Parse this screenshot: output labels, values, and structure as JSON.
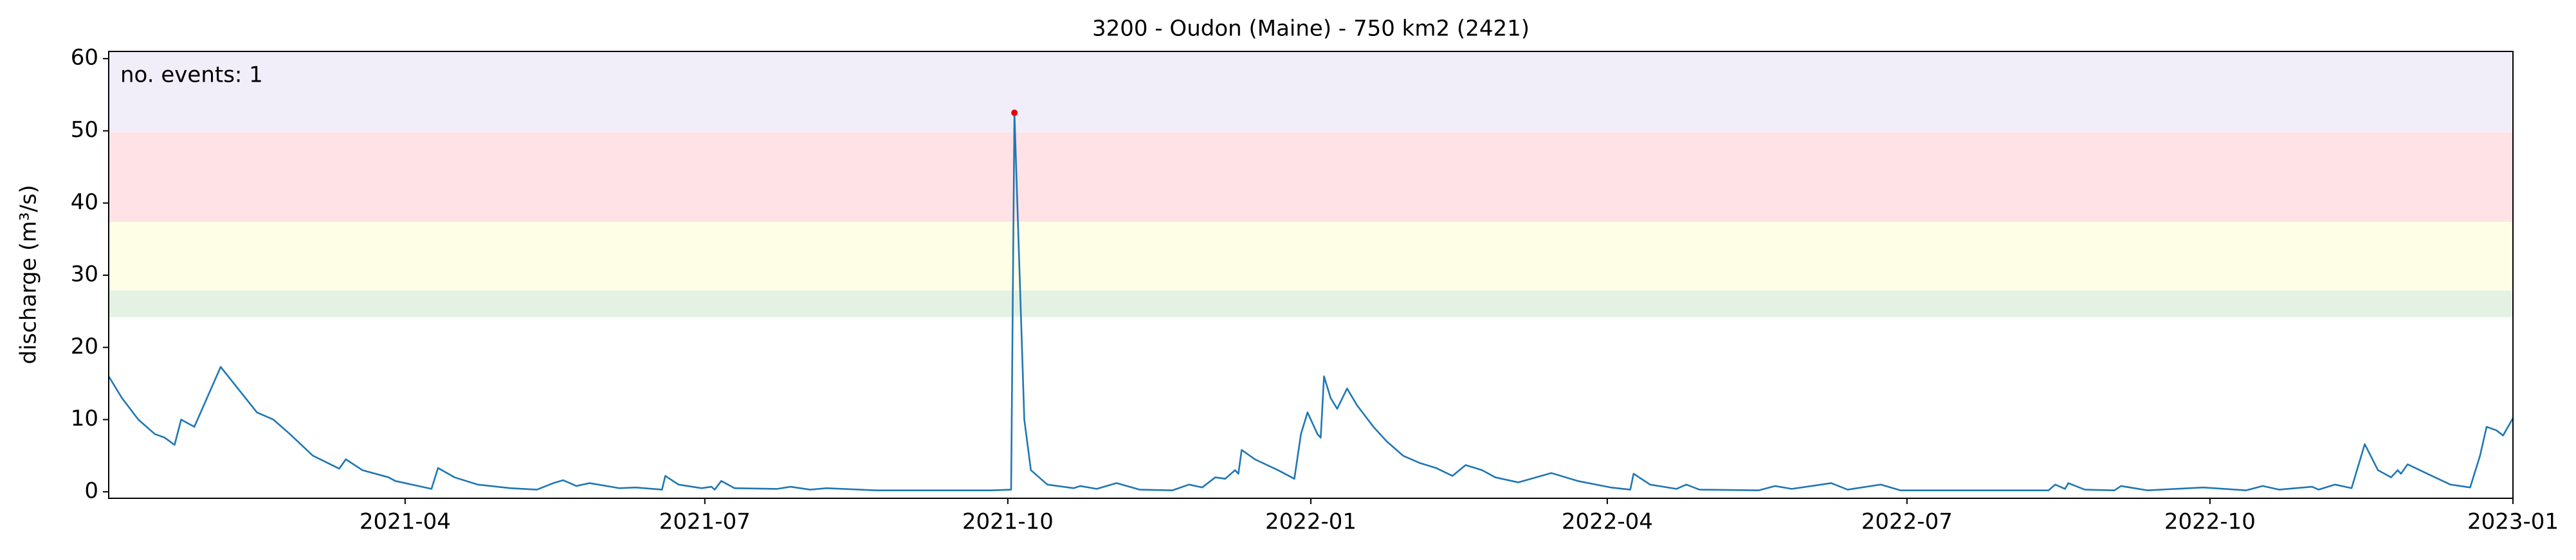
{
  "chart_data": {
    "type": "line",
    "title": "3200 - Oudon (Maine) - 750 km2 (2421)",
    "y_label": "discharge (m³/s)",
    "annotation": "no. events: 1",
    "annotation_color": "#e8000b",
    "xlim": [
      "2021-01-01",
      "2023-01-01"
    ],
    "xticks": [
      "2021-04",
      "2021-07",
      "2021-10",
      "2022-01",
      "2022-04",
      "2022-07",
      "2022-10",
      "2023-01"
    ],
    "ylim": [
      -0.9,
      61
    ],
    "yticks": [
      0,
      10,
      20,
      30,
      40,
      50,
      60
    ],
    "bands": [
      {
        "from": 24.2,
        "to": 27.9,
        "color": "#e4f2e4"
      },
      {
        "from": 27.9,
        "to": 37.4,
        "color": "#fefee6"
      },
      {
        "from": 37.4,
        "to": 49.8,
        "color": "#ffe2e6"
      },
      {
        "from": 49.8,
        "to": 61,
        "color": "#f1eefa"
      }
    ],
    "series": [
      {
        "color": "#1f77b4",
        "x": [
          "2021-01-01",
          "2021-01-05",
          "2021-01-10",
          "2021-01-15",
          "2021-01-18",
          "2021-01-21",
          "2021-01-23",
          "2021-01-27",
          "2021-02-04",
          "2021-02-15",
          "2021-02-20",
          "2021-02-25",
          "2021-03-04",
          "2021-03-12",
          "2021-03-14",
          "2021-03-19",
          "2021-03-27",
          "2021-03-29",
          "2021-04-09",
          "2021-04-11",
          "2021-04-16",
          "2021-04-23",
          "2021-05-03",
          "2021-05-11",
          "2021-05-16",
          "2021-05-19",
          "2021-05-23",
          "2021-05-27",
          "2021-06-05",
          "2021-06-10",
          "2021-06-18",
          "2021-06-19",
          "2021-06-23",
          "2021-06-30",
          "2021-07-03",
          "2021-07-04",
          "2021-07-06",
          "2021-07-10",
          "2021-07-23",
          "2021-07-27",
          "2021-08-02",
          "2021-08-07",
          "2021-08-22",
          "2021-09-26",
          "2021-10-02",
          "2021-10-03",
          "2021-10-06",
          "2021-10-08",
          "2021-10-13",
          "2021-10-21",
          "2021-10-23",
          "2021-10-28",
          "2021-11-03",
          "2021-11-10",
          "2021-11-20",
          "2021-11-25",
          "2021-11-29",
          "2021-12-03",
          "2021-12-06",
          "2021-12-09",
          "2021-12-10",
          "2021-12-11",
          "2021-12-15",
          "2021-12-22",
          "2021-12-27",
          "2021-12-29",
          "2021-12-31",
          "2022-01-03",
          "2022-01-04",
          "2022-01-05",
          "2022-01-07",
          "2022-01-09",
          "2022-01-12",
          "2022-01-15",
          "2022-01-20",
          "2022-01-24",
          "2022-01-29",
          "2022-02-03",
          "2022-02-08",
          "2022-02-13",
          "2022-02-17",
          "2022-02-22",
          "2022-02-26",
          "2022-03-05",
          "2022-03-15",
          "2022-03-23",
          "2022-04-02",
          "2022-04-08",
          "2022-04-09",
          "2022-04-14",
          "2022-04-22",
          "2022-04-25",
          "2022-04-29",
          "2022-05-17",
          "2022-05-22",
          "2022-05-27",
          "2022-06-08",
          "2022-06-13",
          "2022-06-23",
          "2022-06-29",
          "2022-08-13",
          "2022-08-15",
          "2022-08-18",
          "2022-08-19",
          "2022-08-24",
          "2022-09-02",
          "2022-09-04",
          "2022-09-12",
          "2022-09-29",
          "2022-10-12",
          "2022-10-17",
          "2022-10-22",
          "2022-11-01",
          "2022-11-03",
          "2022-11-08",
          "2022-11-13",
          "2022-11-17",
          "2022-11-21",
          "2022-11-25",
          "2022-11-27",
          "2022-11-28",
          "2022-11-30",
          "2022-12-06",
          "2022-12-13",
          "2022-12-19",
          "2022-12-22",
          "2022-12-24",
          "2022-12-27",
          "2022-12-29",
          "2023-01-01"
        ],
        "values": [
          16,
          13,
          10,
          8,
          7.5,
          6.5,
          10,
          9,
          17.3,
          11,
          10,
          8,
          5,
          3.2,
          4.5,
          3,
          2,
          1.5,
          0.4,
          3.3,
          2,
          1,
          0.5,
          0.3,
          1.2,
          1.6,
          0.8,
          1.2,
          0.5,
          0.6,
          0.3,
          2.2,
          1,
          0.5,
          0.7,
          0.3,
          1.5,
          0.5,
          0.4,
          0.7,
          0.3,
          0.5,
          0.2,
          0.2,
          0.3,
          52.5,
          10,
          3,
          1,
          0.5,
          0.8,
          0.4,
          1.2,
          0.3,
          0.2,
          1,
          0.6,
          2,
          1.8,
          3,
          2.5,
          5.8,
          4.5,
          3,
          1.8,
          8,
          11,
          8,
          7.5,
          16,
          13,
          11.5,
          14.3,
          12,
          9,
          7,
          5,
          4,
          3.3,
          2.2,
          3.7,
          3,
          2,
          1.3,
          2.6,
          1.5,
          0.6,
          0.3,
          2.5,
          1,
          0.4,
          1,
          0.3,
          0.2,
          0.8,
          0.4,
          1.2,
          0.3,
          1,
          0.2,
          0.2,
          1,
          0.4,
          1.2,
          0.3,
          0.2,
          0.8,
          0.2,
          0.6,
          0.2,
          0.8,
          0.3,
          0.7,
          0.3,
          1,
          0.5,
          6.6,
          3,
          2,
          3,
          2.5,
          3.8,
          2.5,
          1,
          0.6,
          5,
          9,
          8.5,
          7.8,
          10.2
        ]
      }
    ],
    "event_points": {
      "color": "#e8000b",
      "x": [
        "2021-10-03"
      ],
      "values": [
        52.5
      ]
    }
  }
}
